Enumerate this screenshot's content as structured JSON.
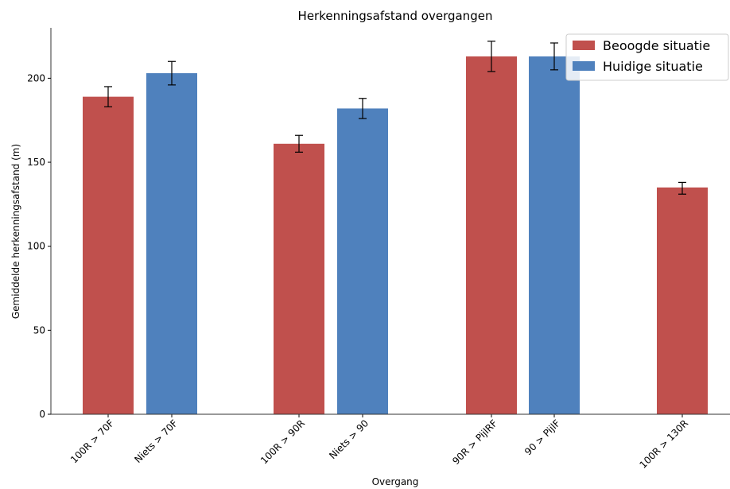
{
  "chart_data": {
    "type": "bar",
    "title": "Herkenningsafstand overgangen",
    "xlabel": "Overgang",
    "ylabel": "Gemiddelde herkenningsafstand (m)",
    "ylim": [
      0,
      230
    ],
    "yticks": [
      0,
      50,
      100,
      150,
      200
    ],
    "grid": false,
    "legend_position": "top-right",
    "series": [
      {
        "name": "Beoogde situatie",
        "color": "#c0504d"
      },
      {
        "name": "Huidige situatie",
        "color": "#4f81bd"
      }
    ],
    "bars": [
      {
        "label": "100R > 70F",
        "series": 0,
        "value": 189,
        "err_low": 183,
        "err_high": 195
      },
      {
        "label": "Niets > 70F",
        "series": 1,
        "value": 203,
        "err_low": 196,
        "err_high": 210
      },
      {
        "label": "100R > 90R",
        "series": 0,
        "value": 161,
        "err_low": 156,
        "err_high": 166
      },
      {
        "label": "Niets > 90",
        "series": 1,
        "value": 182,
        "err_low": 176,
        "err_high": 188
      },
      {
        "label": "90R > PijlRF",
        "series": 0,
        "value": 213,
        "err_low": 204,
        "err_high": 222
      },
      {
        "label": "90 > PijlF",
        "series": 1,
        "value": 213,
        "err_low": 205,
        "err_high": 221
      },
      {
        "label": "100R > 130R",
        "series": 0,
        "value": 135,
        "err_low": 131,
        "err_high": 138
      }
    ]
  }
}
